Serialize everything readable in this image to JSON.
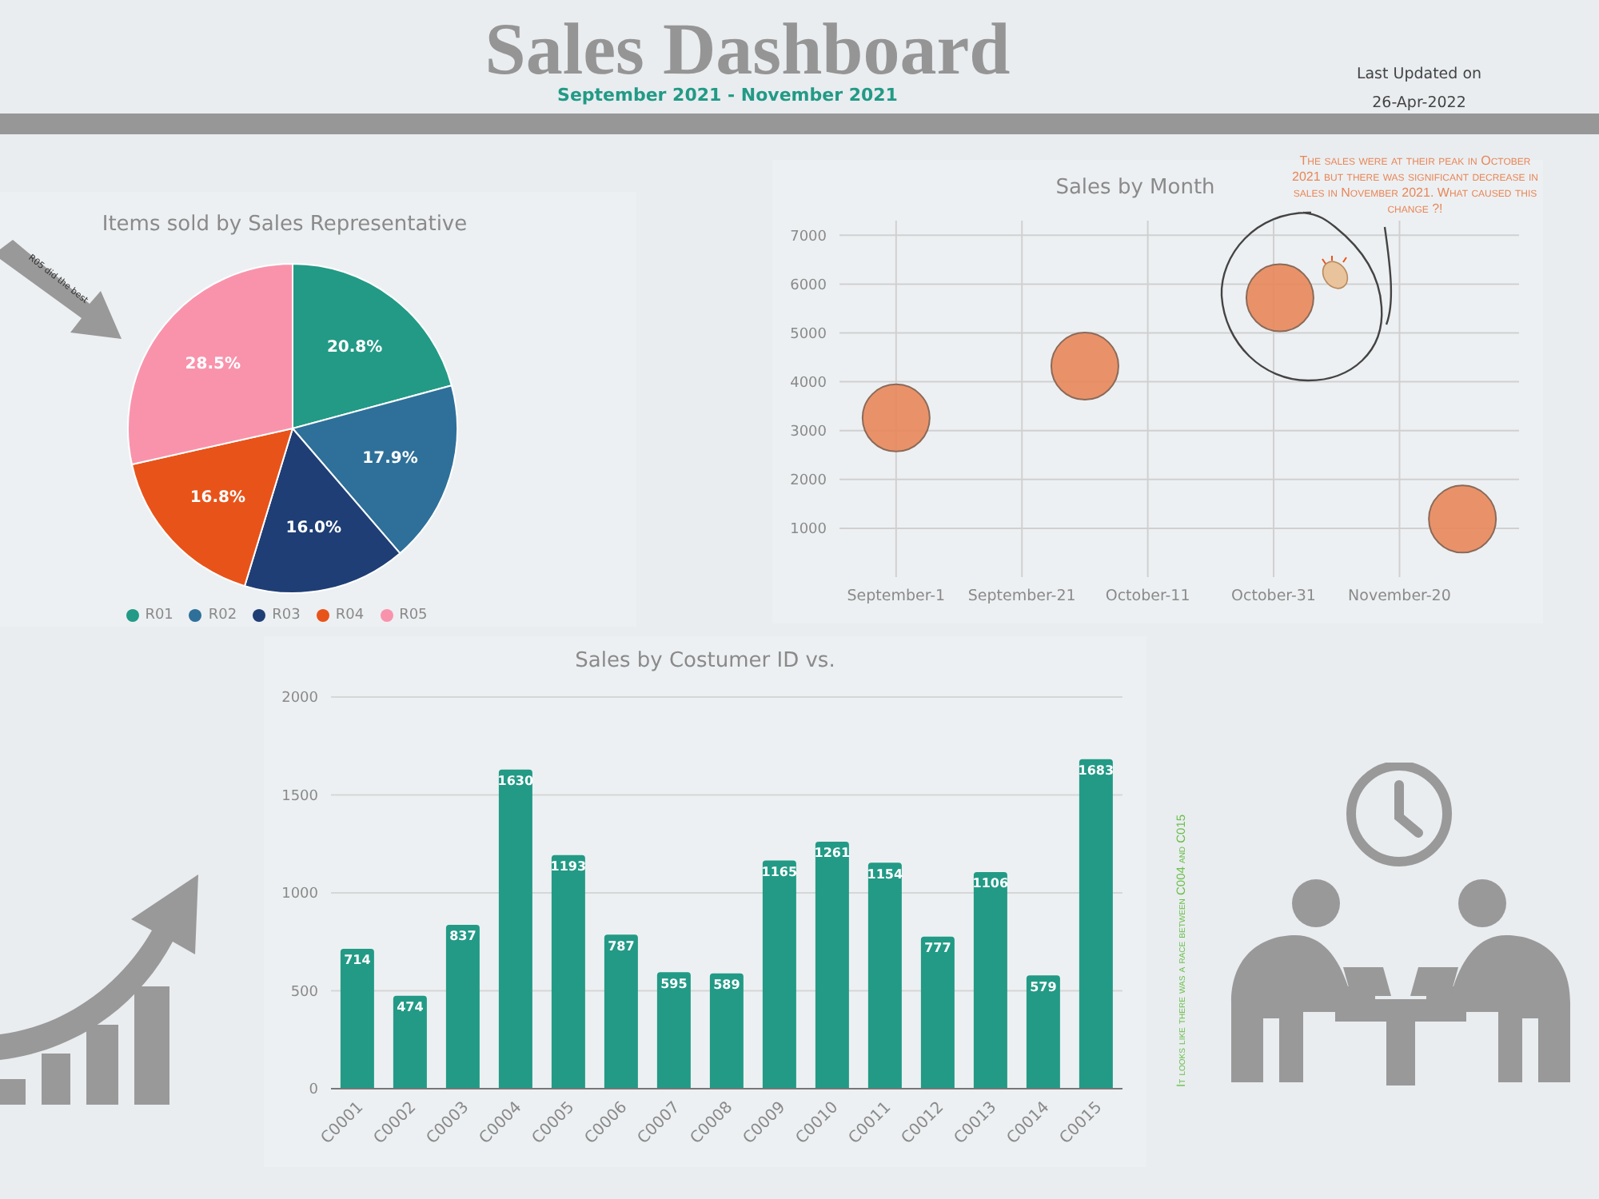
{
  "chart_data": [
    {
      "type": "other",
      "title": "Sales Dashboard",
      "subtitle": "September 2021 - November 2021",
      "annotations": [
        "Last Updated on",
        "26-Apr-2022"
      ]
    },
    {
      "type": "pie",
      "title": "Items sold by Sales Representative",
      "categories": [
        "R01",
        "R02",
        "R03",
        "R04",
        "R05"
      ],
      "values": [
        20.8,
        17.9,
        16.0,
        16.8,
        28.5
      ],
      "value_labels": [
        "20.8%",
        "17.9%",
        "16.0%",
        "16.8%",
        "28.5%"
      ],
      "colors": [
        "#229a86",
        "#2e7099",
        "#1f3e75",
        "#e8531a",
        "#f993ac"
      ],
      "legend": "bottom",
      "annotations": [
        "R05 did the best"
      ]
    },
    {
      "type": "scatter",
      "title": "Sales by Month",
      "x": [
        "2021-09-01",
        "2021-10-01",
        "2021-11-01",
        "2021-11-30"
      ],
      "values": [
        3260,
        4320,
        5720,
        1190
      ],
      "color": "#e8875a",
      "marker": "circle",
      "xlim": [
        "2021-08-23",
        "2021-12-09"
      ],
      "xticks": [
        {
          "value": "2021-09-01",
          "label": "September-1"
        },
        {
          "value": "2021-09-21",
          "label": "September-21"
        },
        {
          "value": "2021-10-11",
          "label": "October-11"
        },
        {
          "value": "2021-10-31",
          "label": "October-31"
        },
        {
          "value": "2021-11-20",
          "label": "November-20"
        }
      ],
      "ylim": [
        0,
        7300
      ],
      "yticks": [
        1000,
        2000,
        3000,
        4000,
        5000,
        6000,
        7000
      ],
      "grid": true,
      "annotations": [
        "The sales were at their peak in October 2021 but there was significant decrease in sales in November 2021. What caused this change ?!"
      ]
    },
    {
      "type": "bar",
      "title": "Sales by Costumer ID vs.",
      "categories": [
        "C0001",
        "C0002",
        "C0003",
        "C0004",
        "C0005",
        "C0006",
        "C0007",
        "C0008",
        "C0009",
        "C0010",
        "C0011",
        "C0012",
        "C0013",
        "C0014",
        "C0015"
      ],
      "values": [
        714,
        474,
        837,
        1630,
        1193,
        787,
        595,
        589,
        1165,
        1261,
        1154,
        777,
        1106,
        579,
        1683
      ],
      "color": "#229a86",
      "ylim": [
        0,
        2000
      ],
      "yticks": [
        0,
        500,
        1000,
        1500,
        2000
      ],
      "grid": "y",
      "data_labels": true,
      "annotations": [
        "It looks like there was a race between C004 and C015"
      ]
    }
  ]
}
